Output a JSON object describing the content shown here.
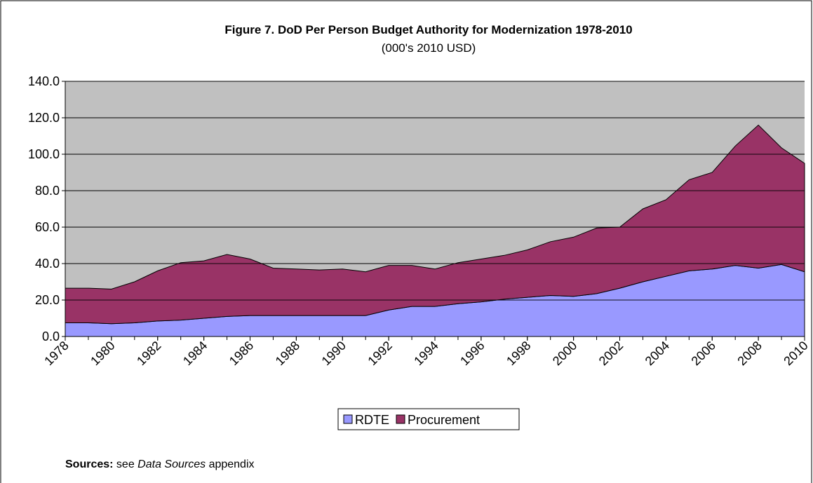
{
  "chart_data": {
    "type": "stacked_area",
    "title": "Figure 7. DoD Per Person Budget Authority for Modernization 1978-2010",
    "subtitle": "(000's 2010 USD)",
    "x": [
      1978,
      1979,
      1980,
      1981,
      1982,
      1983,
      1984,
      1985,
      1986,
      1987,
      1988,
      1989,
      1990,
      1991,
      1992,
      1993,
      1994,
      1995,
      1996,
      1997,
      1998,
      1999,
      2000,
      2001,
      2002,
      2003,
      2004,
      2005,
      2006,
      2007,
      2008,
      2009,
      2010
    ],
    "xlim": [
      1978,
      2010
    ],
    "xticks": [
      1978,
      1980,
      1982,
      1984,
      1986,
      1988,
      1990,
      1992,
      1994,
      1996,
      1998,
      2000,
      2002,
      2004,
      2006,
      2008,
      2010
    ],
    "ylim": [
      0,
      140
    ],
    "yticks": [
      {
        "value": 0,
        "label": "0.0"
      },
      {
        "value": 20,
        "label": "20.0"
      },
      {
        "value": 40,
        "label": "40.0"
      },
      {
        "value": 60,
        "label": "60.0"
      },
      {
        "value": 80,
        "label": "80.0"
      },
      {
        "value": 100,
        "label": "100.0"
      },
      {
        "value": 120,
        "label": "120.0"
      },
      {
        "value": 140,
        "label": "140.0"
      }
    ],
    "grid": true,
    "plot_background": "#c0c0c0",
    "legend": "bottom",
    "series": [
      {
        "name": "RDTE",
        "color": "#9999ff",
        "values": [
          7.5,
          7.5,
          7,
          7.5,
          8.5,
          9,
          10,
          11,
          11.5,
          11.5,
          11.5,
          11.5,
          11.5,
          11.5,
          14.5,
          16.5,
          16.5,
          18,
          19,
          20.5,
          21.5,
          22.5,
          22,
          23.5,
          26.5,
          30,
          33,
          36,
          37,
          39,
          37.5,
          39.5,
          35.5
        ]
      },
      {
        "name": "Procurement",
        "color": "#993366",
        "values": [
          19,
          19,
          19,
          22.5,
          27.5,
          31.5,
          31.5,
          34,
          31,
          26,
          25.5,
          25,
          25.5,
          24,
          24.5,
          22.5,
          20.5,
          22.5,
          23.5,
          24,
          26,
          29.5,
          32.5,
          36,
          33.5,
          40,
          42,
          50,
          53,
          65.5,
          78.5,
          64,
          59.5
        ]
      }
    ],
    "sources": {
      "label": "Sources:",
      "text_before": "see",
      "emphasis": "Data Sources",
      "text_after": "appendix"
    }
  }
}
